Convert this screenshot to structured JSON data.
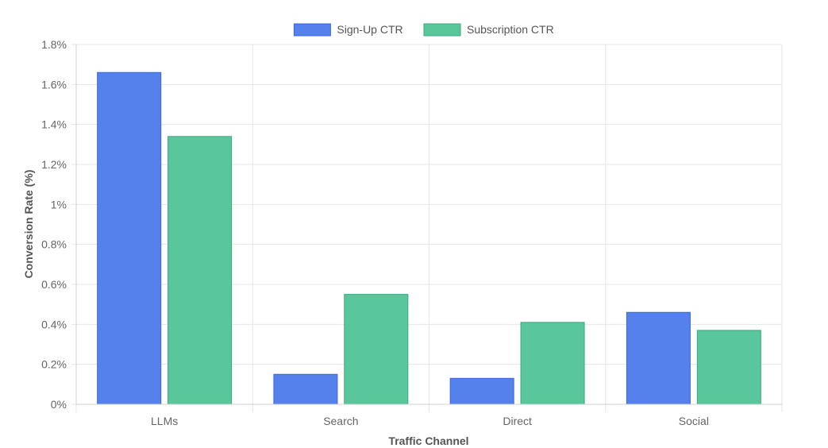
{
  "chart_data": {
    "type": "bar",
    "title": "",
    "categories": [
      "LLMs",
      "Search",
      "Direct",
      "Social"
    ],
    "series": [
      {
        "name": "Sign-Up CTR",
        "values": [
          1.66,
          0.15,
          0.13,
          0.46
        ],
        "color": "#5581ec",
        "border": "#3b66d6"
      },
      {
        "name": "Subscription CTR",
        "values": [
          1.34,
          0.55,
          0.41,
          0.37
        ],
        "color": "#59c79b",
        "border": "#3aaa7c"
      }
    ],
    "xlabel": "Traffic Channel",
    "ylabel": "Conversion Rate (%)",
    "ylim": [
      0,
      1.8
    ],
    "yticks": [
      0,
      0.2,
      0.4,
      0.6,
      0.8,
      1,
      1.2,
      1.4,
      1.6,
      1.8
    ],
    "ytick_labels": [
      "0%",
      "0.2%",
      "0.4%",
      "0.6%",
      "0.8%",
      "1%",
      "1.2%",
      "1.4%",
      "1.6%",
      "1.8%"
    ],
    "grid": true,
    "legend_position": "top-center"
  }
}
